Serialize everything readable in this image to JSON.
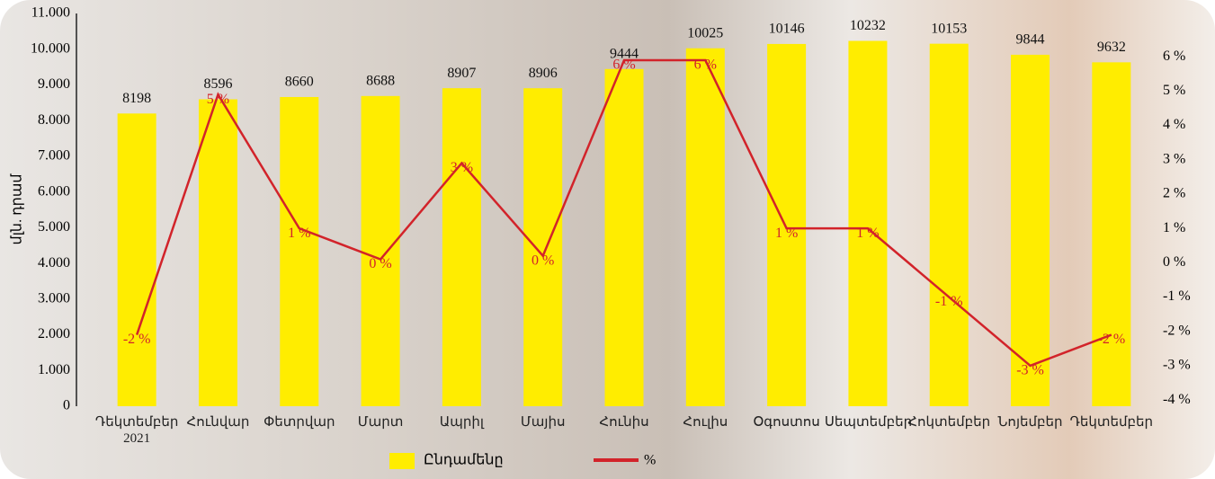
{
  "chart_data": {
    "type": "bar_line",
    "categories": [
      "Դեկտեմբեր 2021",
      "Հունվար",
      "Փետրվար",
      "Մարտ",
      "Ապրիլ",
      "Մայիս",
      "Հունիս",
      "Հուլիս",
      "Օգոստոս",
      "Սեպտեմբեր",
      "Հոկտեմբեր",
      "Նոյեմբեր",
      "Դեկտեմբեր"
    ],
    "y_label": "մլն. դրամ",
    "ylim": [
      0,
      11000
    ],
    "yticks": [
      0,
      {
        "value": 1000,
        "label": "1.000"
      },
      {
        "value": 2000,
        "label": "2.000"
      },
      {
        "value": 3000,
        "label": "3.000"
      },
      {
        "value": 4000,
        "label": "4.000"
      },
      {
        "value": 5000,
        "label": "5.000"
      },
      {
        "value": 6000,
        "label": "6.000"
      },
      {
        "value": 7000,
        "label": "7.000"
      },
      {
        "value": 8000,
        "label": "8.000"
      },
      {
        "value": 9000,
        "label": "9.000"
      },
      {
        "value": 10000,
        "label": "10.000"
      },
      {
        "value": 11000,
        "label": "11.000"
      }
    ],
    "y2lim": [
      -4.18,
      7.26
    ],
    "y2ticks": [
      {
        "value": -4,
        "label": "-4 %"
      },
      {
        "value": -3,
        "label": "-3 %"
      },
      {
        "value": -2,
        "label": "-2 %"
      },
      {
        "value": -1,
        "label": "-1 %"
      },
      {
        "value": 0,
        "label": "0 %"
      },
      {
        "value": 1,
        "label": "1 %"
      },
      {
        "value": 2,
        "label": "2 %"
      },
      {
        "value": 3,
        "label": "3 %"
      },
      {
        "value": 4,
        "label": "4 %"
      },
      {
        "value": 5,
        "label": "5 %"
      },
      {
        "value": 6,
        "label": "6 %"
      }
    ],
    "legend": "bottom",
    "series": [
      {
        "name": "Ընդամենը",
        "type": "bar",
        "color": "#ffed00",
        "values": [
          8198,
          8596,
          8660,
          8688,
          8907,
          8906,
          9444,
          10025,
          10146,
          10232,
          10153,
          9844,
          9632
        ]
      },
      {
        "name": "%",
        "type": "line",
        "axis": "y2",
        "color": "#d2232a",
        "values": [
          -2.1,
          4.9,
          1.0,
          0.1,
          2.9,
          0.2,
          5.9,
          5.9,
          1.0,
          1.0,
          -1.0,
          -3.0,
          -2.1
        ],
        "value_labels": [
          "-2 %",
          "5 %",
          "1 %",
          "0 %",
          "3 %",
          "0 %",
          "6 %",
          "6 %",
          "1 %",
          "1 %",
          "-1 %",
          "-3 %",
          "-2 %"
        ]
      }
    ]
  }
}
